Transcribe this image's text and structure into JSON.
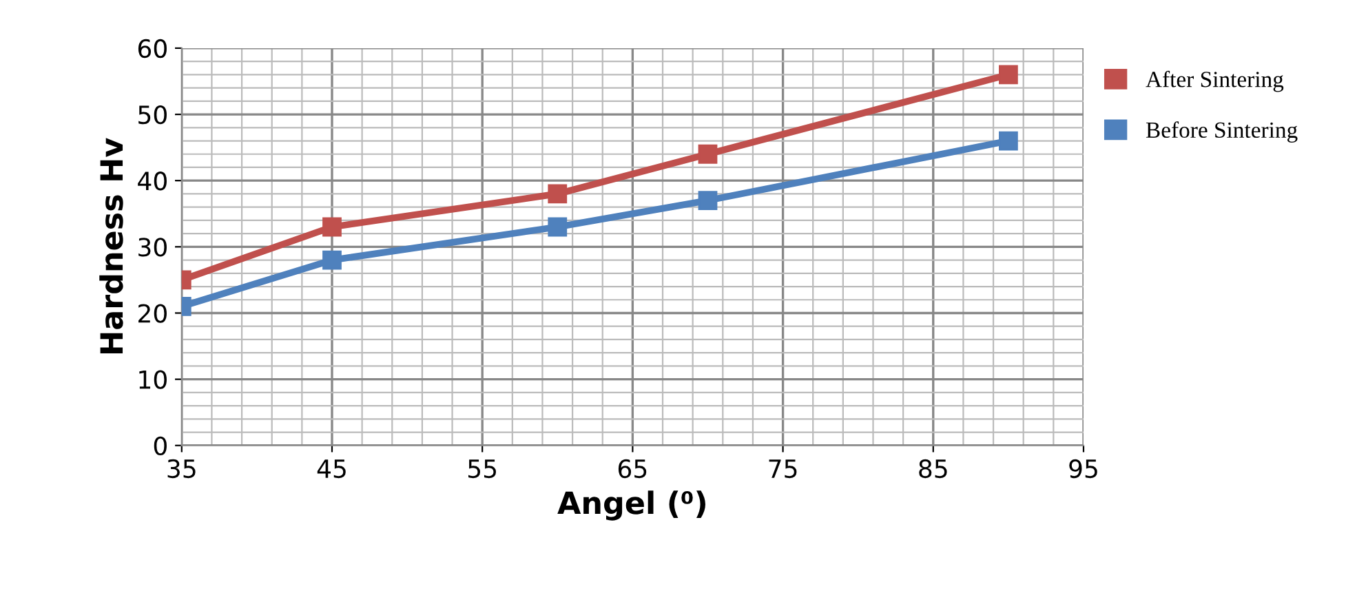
{
  "chart_data": {
    "type": "line",
    "xlabel": "Angel (⁰)",
    "ylabel": "Hardness Hv",
    "x": [
      35,
      45,
      60,
      70,
      90
    ],
    "series": [
      {
        "name": "After Sintering",
        "color": "#c0504d",
        "values": [
          25,
          33,
          38,
          44,
          56
        ]
      },
      {
        "name": "Before Sintering",
        "color": "#4f81bd",
        "values": [
          21,
          28,
          33,
          37,
          46
        ]
      }
    ],
    "xlim": [
      35,
      95
    ],
    "xticks": [
      35,
      45,
      55,
      65,
      75,
      85,
      95
    ],
    "ylim": [
      0,
      60
    ],
    "yticks": [
      0,
      10,
      20,
      30,
      40,
      50,
      60
    ],
    "grid": true,
    "legend": "right",
    "marker": "square",
    "line_style": "solid"
  }
}
